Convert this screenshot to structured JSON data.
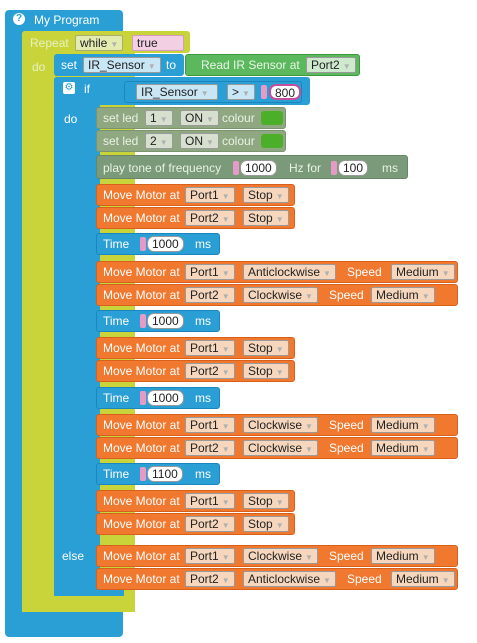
{
  "program": {
    "title": "My Program"
  },
  "repeat": {
    "label": "Repeat",
    "mode": "while",
    "condition": "true",
    "do_label": "do"
  },
  "set_block": {
    "label": "set",
    "variable": "IR_Sensor",
    "to_label": "to",
    "read_label": "Read IR Sensor at",
    "port": "Port2"
  },
  "if_block": {
    "label": "if",
    "variable": "IR_Sensor",
    "operator": ">",
    "value": "800",
    "do_label": "do",
    "else_label": "else"
  },
  "leds": [
    {
      "label": "set led",
      "index": "1",
      "state": "ON",
      "colour_label": "colour",
      "colour": "#4caf2a"
    },
    {
      "label": "set led",
      "index": "2",
      "state": "ON",
      "colour_label": "colour",
      "colour": "#4caf2a"
    }
  ],
  "tone": {
    "label": "play tone of frequency",
    "freq": "1000",
    "hz_for": "Hz for",
    "duration": "100",
    "unit": "ms"
  },
  "common": {
    "move_motor": "Move Motor at",
    "speed": "Speed",
    "time": "Time",
    "ms": "ms"
  },
  "blocks": [
    {
      "kind": "motor",
      "port": "Port1",
      "action": "Stop"
    },
    {
      "kind": "motor",
      "port": "Port2",
      "action": "Stop"
    },
    {
      "kind": "time",
      "value": "1000"
    },
    {
      "kind": "motor",
      "port": "Port1",
      "action": "Anticlockwise",
      "speed": "Medium"
    },
    {
      "kind": "motor",
      "port": "Port2",
      "action": "Clockwise",
      "speed": "Medium"
    },
    {
      "kind": "time",
      "value": "1000"
    },
    {
      "kind": "motor",
      "port": "Port1",
      "action": "Stop"
    },
    {
      "kind": "motor",
      "port": "Port2",
      "action": "Stop"
    },
    {
      "kind": "time",
      "value": "1000"
    },
    {
      "kind": "motor",
      "port": "Port1",
      "action": "Clockwise",
      "speed": "Medium"
    },
    {
      "kind": "motor",
      "port": "Port2",
      "action": "Clockwise",
      "speed": "Medium"
    },
    {
      "kind": "time",
      "value": "1100"
    },
    {
      "kind": "motor",
      "port": "Port1",
      "action": "Stop"
    },
    {
      "kind": "motor",
      "port": "Port2",
      "action": "Stop"
    }
  ],
  "else_blocks": [
    {
      "kind": "motor",
      "port": "Port1",
      "action": "Clockwise",
      "speed": "Medium"
    },
    {
      "kind": "motor",
      "port": "Port2",
      "action": "Anticlockwise",
      "speed": "Medium"
    }
  ],
  "colors": {
    "program": "#2a9fd6",
    "repeat": "#c9d33a",
    "motor": "#f0782f",
    "led": "#8fa882",
    "sensor": "#5cb85c"
  }
}
